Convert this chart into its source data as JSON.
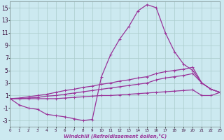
{
  "background_color": "#cce9f0",
  "grid_color": "#aacccc",
  "line_color": "#993399",
  "marker": "+",
  "markersize": 3,
  "linewidth": 0.9,
  "x_min": 0,
  "x_max": 23,
  "y_min": -4,
  "y_max": 16,
  "yticks": [
    -3,
    -1,
    1,
    3,
    5,
    7,
    9,
    11,
    13,
    15
  ],
  "xticks": [
    0,
    1,
    2,
    3,
    4,
    5,
    6,
    7,
    8,
    9,
    10,
    11,
    12,
    13,
    14,
    15,
    16,
    17,
    18,
    19,
    20,
    21,
    22,
    23
  ],
  "xlabel": "Windchill (Refroidissement éolien,°C)",
  "lines": [
    {
      "x": [
        0,
        1,
        2,
        3,
        4,
        5,
        6,
        7,
        8,
        9,
        10,
        11,
        12,
        13,
        14,
        15,
        16,
        17,
        18,
        19,
        20,
        21,
        22,
        23
      ],
      "y": [
        0.5,
        -0.5,
        -1.0,
        -1.2,
        -2.0,
        -2.2,
        -2.4,
        -2.7,
        -3.0,
        -2.8,
        4.0,
        7.5,
        10.0,
        12.0,
        14.5,
        15.5,
        15.0,
        11.0,
        8.0,
        6.0,
        5.0,
        3.0,
        2.0,
        1.5
      ]
    },
    {
      "x": [
        0,
        1,
        2,
        3,
        4,
        5,
        6,
        7,
        8,
        9,
        10,
        11,
        12,
        13,
        14,
        15,
        16,
        17,
        18,
        19,
        20,
        21,
        22,
        23
      ],
      "y": [
        0.5,
        0.6,
        0.8,
        1.0,
        1.2,
        1.5,
        1.8,
        2.0,
        2.3,
        2.5,
        2.8,
        3.0,
        3.3,
        3.5,
        3.8,
        4.0,
        4.5,
        4.8,
        5.0,
        5.2,
        5.5,
        3.0,
        2.0,
        1.5
      ]
    },
    {
      "x": [
        0,
        1,
        2,
        3,
        4,
        5,
        6,
        7,
        8,
        9,
        10,
        11,
        12,
        13,
        14,
        15,
        16,
        17,
        18,
        19,
        20,
        21,
        22,
        23
      ],
      "y": [
        0.5,
        0.5,
        0.6,
        0.7,
        0.9,
        1.0,
        1.2,
        1.4,
        1.6,
        1.8,
        2.0,
        2.2,
        2.4,
        2.6,
        2.8,
        3.0,
        3.5,
        3.8,
        4.0,
        4.2,
        4.5,
        3.0,
        2.0,
        1.5
      ]
    },
    {
      "x": [
        0,
        1,
        2,
        3,
        4,
        5,
        6,
        7,
        8,
        9,
        10,
        11,
        12,
        13,
        14,
        15,
        16,
        17,
        18,
        19,
        20,
        21,
        22,
        23
      ],
      "y": [
        0.5,
        0.5,
        0.5,
        0.5,
        0.5,
        0.5,
        0.6,
        0.7,
        0.8,
        0.9,
        1.0,
        1.0,
        1.1,
        1.2,
        1.3,
        1.4,
        1.5,
        1.6,
        1.7,
        1.8,
        1.9,
        1.0,
        1.0,
        1.5
      ]
    }
  ]
}
